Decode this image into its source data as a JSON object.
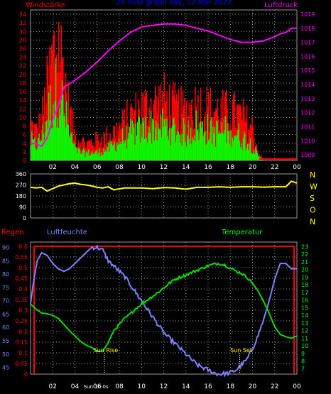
{
  "title": "24 hour graph day, 12 Mar 2022",
  "colors": {
    "background": "#000000",
    "grid": "#9a9a9a",
    "wind_gust": "#ff0000",
    "wind_avg": "#00ff00",
    "pressure": "#ff00ff",
    "direction": "#ffff00",
    "humidity": "#8080ff",
    "temperature": "#00dd00",
    "rain": "#ff0000",
    "label_red": "#ff0000",
    "label_blue": "#0000ff",
    "label_magenta": "#ff00ff",
    "label_green": "#00ff00",
    "label_white": "#ffffff",
    "label_yellow": "#ffff00"
  },
  "chart_data": [
    {
      "type": "bar",
      "id": "wind",
      "left_label": "Windstärke",
      "right_label": "Luftdruck",
      "x_ticks": [
        "02",
        "04",
        "06",
        "08",
        "10",
        "12",
        "14",
        "16",
        "18",
        "20",
        "22",
        "00"
      ],
      "x_range_hours": [
        0,
        24
      ],
      "y_left_ticks": [
        "0",
        "2",
        "4",
        "6",
        "8",
        "10",
        "12",
        "14",
        "16",
        "18",
        "20",
        "22",
        "24",
        "26",
        "28",
        "30",
        "32",
        "34"
      ],
      "y_left_range": [
        0,
        35
      ],
      "y_right_ticks": [
        "1009",
        "1010",
        "1011",
        "1012",
        "1013",
        "1014",
        "1015",
        "1016",
        "1017",
        "1018",
        "1019"
      ],
      "y_right_range": [
        1008.6,
        1019.3
      ],
      "gust_profile": {
        "hours": [
          0,
          0.5,
          1.0,
          1.5,
          2.0,
          2.5,
          3.0,
          3.5,
          4.0,
          4.5,
          5.0,
          6.0,
          7.0,
          8.0,
          9.0,
          10.0,
          11.0,
          12.0,
          13.0,
          14.0,
          15.0,
          16.0,
          17.0,
          18.0,
          19.0,
          20.0,
          20.5,
          21.0,
          24.0
        ],
        "values": [
          9,
          7,
          10,
          18,
          26,
          30,
          22,
          12,
          6,
          5,
          4,
          5,
          6,
          8,
          11,
          13,
          14,
          15,
          13,
          12,
          14,
          13,
          12,
          12,
          11,
          8,
          2,
          0,
          0
        ]
      },
      "avg_profile": {
        "hours": [
          0,
          0.5,
          1.0,
          1.5,
          2.0,
          2.5,
          3.0,
          3.5,
          4.0,
          4.5,
          5.0,
          6.0,
          7.0,
          8.0,
          9.0,
          10.0,
          11.0,
          12.0,
          13.0,
          14.0,
          15.0,
          16.0,
          17.0,
          18.0,
          19.0,
          20.0,
          20.5,
          21.0,
          24.0
        ],
        "values": [
          5,
          4,
          6,
          11,
          16,
          19,
          13,
          7,
          3,
          2,
          2,
          2,
          3,
          5,
          7,
          8,
          9,
          9,
          8,
          7,
          9,
          8,
          7,
          8,
          6,
          4,
          1,
          0,
          0
        ]
      },
      "pressure": {
        "hours": [
          0,
          0.5,
          1.0,
          1.5,
          2.0,
          2.5,
          3.0,
          4.0,
          5.0,
          6.0,
          7.0,
          8.0,
          9.0,
          10.0,
          11.0,
          12.0,
          13.0,
          14.0,
          15.0,
          16.0,
          17.0,
          18.0,
          19.0,
          20.0,
          21.0,
          22.0,
          22.5,
          23.0,
          23.5,
          24.0
        ],
        "values": [
          1009.8,
          1009.8,
          1009.6,
          1010.2,
          1011.5,
          1012.5,
          1013.8,
          1014.3,
          1014.9,
          1015.6,
          1016.4,
          1017.1,
          1017.7,
          1018.1,
          1018.2,
          1018.3,
          1018.3,
          1018.2,
          1018.0,
          1017.8,
          1017.5,
          1017.2,
          1017.0,
          1017.0,
          1017.1,
          1017.4,
          1017.6,
          1017.7,
          1018.0,
          1018.0
        ]
      }
    },
    {
      "type": "line",
      "id": "direction",
      "right_labels": [
        "N",
        "W",
        "S",
        "O",
        "N"
      ],
      "x_ticks": [
        "02",
        "04",
        "06",
        "08",
        "10",
        "12",
        "14",
        "16",
        "18",
        "20",
        "22",
        "00"
      ],
      "x_range_hours": [
        0,
        24
      ],
      "y_ticks": [
        "0",
        "90",
        "180",
        "270",
        "360"
      ],
      "y_range": [
        0,
        360
      ],
      "series": [
        {
          "hours": [
            0,
            0.5,
            1.0,
            1.5,
            2.0,
            2.5,
            3.0,
            3.5,
            4.0,
            4.5,
            5.0,
            5.5,
            6.0,
            6.5,
            7.0,
            7.5,
            8.0,
            8.5,
            9.0,
            10.0,
            11.0,
            12.0,
            13.0,
            14.0,
            15.0,
            16.0,
            17.0,
            18.0,
            19.0,
            20.0,
            21.0,
            22.0,
            23.0,
            23.5,
            24.0
          ],
          "values": [
            250,
            245,
            250,
            220,
            240,
            260,
            270,
            280,
            285,
            275,
            270,
            262,
            250,
            245,
            255,
            230,
            238,
            245,
            245,
            245,
            240,
            248,
            245,
            235,
            250,
            250,
            255,
            250,
            255,
            255,
            252,
            255,
            255,
            300,
            285
          ]
        }
      ]
    },
    {
      "type": "line",
      "id": "temp_hum",
      "left_labels": [
        "Regen",
        "Luftfeuchte"
      ],
      "right_label": "Temperatur",
      "x_ticks": [
        "02",
        "04",
        "06",
        "08",
        "10",
        "12",
        "14",
        "16",
        "18",
        "20",
        "22",
        "00"
      ],
      "x_range_hours": [
        0,
        24
      ],
      "y_rain_ticks": [
        "0",
        "0.05",
        "0.1",
        "0.15",
        "0.2",
        "0.25",
        "0.3",
        "0.35",
        "0.4",
        "0.45",
        "0.5",
        "0.55",
        "0.6"
      ],
      "y_rain_range": [
        0,
        0.62
      ],
      "y_hum_ticks": [
        "45",
        "50",
        "55",
        "60",
        "65",
        "70",
        "75",
        "80",
        "85",
        "90"
      ],
      "y_hum_range": [
        42.5,
        92
      ],
      "y_temp_ticks": [
        "7",
        "8",
        "9",
        "10",
        "11",
        "12",
        "13",
        "14",
        "15",
        "16",
        "17",
        "18",
        "19",
        "20",
        "21",
        "22",
        "23"
      ],
      "y_temp_range": [
        6.3,
        23.6
      ],
      "series": [
        {
          "name": "Luftfeuchte",
          "hours": [
            0,
            0.3,
            0.6,
            1.0,
            1.5,
            2.0,
            2.5,
            3.0,
            3.5,
            4.0,
            4.5,
            5.0,
            5.5,
            6.0,
            6.5,
            7.0,
            7.5,
            8.0,
            8.5,
            9.0,
            9.5,
            10.0,
            10.5,
            11.0,
            11.5,
            12.0,
            12.5,
            13.0,
            13.5,
            14.0,
            14.5,
            15.0,
            15.5,
            16.0,
            16.5,
            17.0,
            17.5,
            18.0,
            18.5,
            19.0,
            19.5,
            20.0,
            20.5,
            21.0,
            21.5,
            22.0,
            22.5,
            23.0,
            23.5,
            24.0
          ],
          "values": [
            69,
            78,
            85,
            88,
            87,
            84,
            82,
            81,
            82,
            84,
            86,
            88,
            90,
            90,
            89,
            85,
            83,
            81,
            79,
            76,
            73,
            70,
            67,
            64,
            61,
            58,
            56,
            54,
            52,
            50,
            48,
            46,
            45,
            44,
            43,
            42.5,
            42.7,
            43,
            44,
            46,
            48,
            52,
            57,
            63,
            70,
            78,
            84,
            84,
            82,
            82
          ]
        },
        {
          "name": "Temperatur",
          "hours": [
            0,
            0.5,
            1.0,
            1.5,
            2.0,
            2.5,
            3.0,
            3.5,
            4.0,
            4.5,
            5.0,
            5.5,
            6.0,
            6.5,
            7.0,
            7.5,
            8.0,
            8.5,
            9.0,
            9.5,
            10.0,
            10.5,
            11.0,
            11.5,
            12.0,
            12.5,
            13.0,
            13.5,
            14.0,
            14.5,
            15.0,
            15.5,
            16.0,
            16.5,
            17.0,
            17.5,
            18.0,
            18.5,
            19.0,
            19.5,
            20.0,
            20.5,
            21.0,
            21.5,
            22.0,
            22.5,
            23.0,
            23.5,
            24.0
          ],
          "values": [
            15.5,
            14.8,
            14.3,
            14.2,
            14.0,
            13.6,
            12.8,
            12.0,
            11.3,
            10.6,
            10.1,
            9.8,
            9.3,
            9.3,
            10.4,
            12.0,
            12.8,
            13.6,
            14.2,
            14.9,
            15.5,
            16.0,
            16.5,
            17.0,
            17.6,
            18.2,
            18.7,
            19.0,
            19.3,
            19.6,
            19.9,
            20.2,
            20.5,
            20.7,
            20.8,
            20.6,
            20.2,
            19.8,
            19.5,
            19.0,
            18.2,
            17.2,
            15.8,
            14.3,
            12.5,
            11.5,
            11.2,
            11.0,
            11.3
          ]
        }
      ],
      "rain_total_line": 0.6,
      "annotations": [
        {
          "text": "Sun Rise",
          "hour": 6.65
        },
        {
          "text": "Sun Set",
          "hour": 18.85
        },
        {
          "text": "Sun 10:0s",
          "hour": 5.9
        }
      ]
    }
  ]
}
